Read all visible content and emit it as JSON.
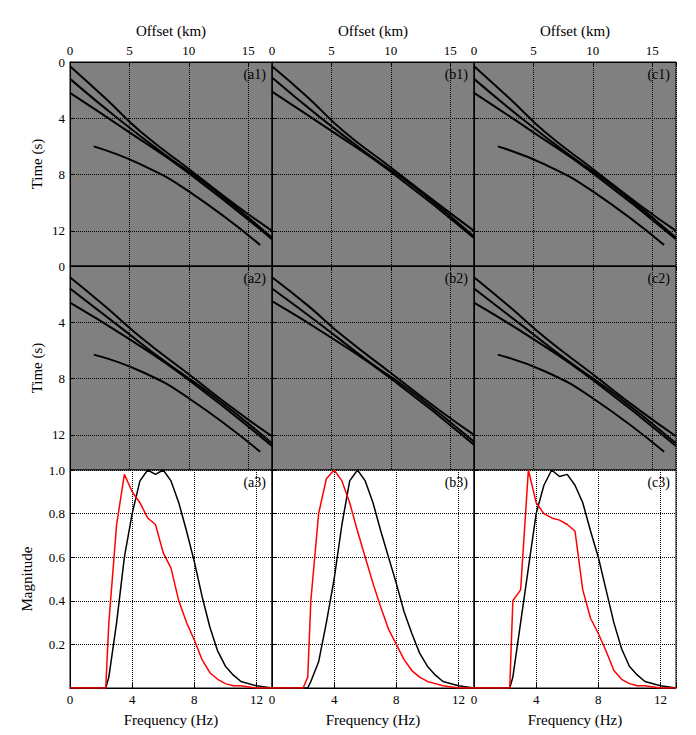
{
  "chart_data": [
    {
      "type": "line",
      "title": "(a1)",
      "xlabel": "Offset (km)",
      "ylabel": "Time (s)",
      "xlim": [
        0,
        17
      ],
      "xticks": [
        0,
        5,
        10,
        15
      ],
      "ylim": [
        0,
        14.5
      ],
      "yticks": [
        0,
        4,
        8,
        12
      ],
      "grid": true,
      "tick_labels": true,
      "series": [
        {
          "color": "#000000",
          "values": [
            [
              0,
              0.3
            ],
            [
              3,
              2.6
            ],
            [
              6,
              5
            ],
            [
              10,
              7.6
            ],
            [
              14,
              10.2
            ],
            [
              17,
              12
            ]
          ]
        },
        {
          "color": "#000000",
          "values": [
            [
              0,
              1.2
            ],
            [
              4,
              4
            ],
            [
              8,
              6.6
            ],
            [
              12,
              9
            ],
            [
              17,
              12.5
            ]
          ]
        },
        {
          "color": "#000000",
          "values": [
            [
              0,
              2.2
            ],
            [
              5,
              5
            ],
            [
              10,
              7.9
            ],
            [
              17,
              12.6
            ]
          ]
        },
        {
          "color": "#000000",
          "values": [
            [
              2,
              6
            ],
            [
              6,
              7.3
            ],
            [
              10,
              9.2
            ],
            [
              16,
              13
            ]
          ]
        }
      ]
    },
    {
      "type": "line",
      "title": "(b1)",
      "xlabel": "Offset (km)",
      "xlim": [
        0,
        17
      ],
      "xticks": [
        0,
        5,
        10,
        15
      ],
      "ylim": [
        0,
        14.5
      ],
      "yticks": [
        0,
        4,
        8,
        12
      ],
      "grid": true,
      "tick_labels": "x",
      "series": [
        {
          "color": "#000000",
          "values": [
            [
              0,
              0.3
            ],
            [
              3,
              2.5
            ],
            [
              6,
              4.9
            ],
            [
              10,
              7.5
            ],
            [
              14,
              10.1
            ],
            [
              17,
              12
            ]
          ]
        },
        {
          "color": "#000000",
          "values": [
            [
              0,
              1.1
            ],
            [
              4,
              3.9
            ],
            [
              8,
              6.5
            ],
            [
              12,
              8.9
            ],
            [
              17,
              12.4
            ]
          ]
        },
        {
          "color": "#000000",
          "values": [
            [
              0,
              2.1
            ],
            [
              5,
              4.9
            ],
            [
              10,
              7.8
            ],
            [
              17,
              12.5
            ]
          ]
        }
      ]
    },
    {
      "type": "line",
      "title": "(c1)",
      "xlabel": "Offset (km)",
      "xlim": [
        0,
        17
      ],
      "xticks": [
        0,
        5,
        10,
        15
      ],
      "ylim": [
        0,
        14.5
      ],
      "yticks": [
        0,
        4,
        8,
        12
      ],
      "grid": true,
      "tick_labels": "x",
      "series": [
        {
          "color": "#000000",
          "values": [
            [
              0,
              0.3
            ],
            [
              3,
              2.6
            ],
            [
              6,
              5
            ],
            [
              10,
              7.6
            ],
            [
              14,
              10.2
            ],
            [
              17,
              12
            ]
          ]
        },
        {
          "color": "#000000",
          "values": [
            [
              0,
              1.2
            ],
            [
              4,
              4
            ],
            [
              8,
              6.6
            ],
            [
              12,
              9
            ],
            [
              17,
              12.5
            ]
          ]
        },
        {
          "color": "#000000",
          "values": [
            [
              0,
              2.2
            ],
            [
              5,
              5
            ],
            [
              10,
              7.9
            ],
            [
              17,
              12.6
            ]
          ]
        },
        {
          "color": "#000000",
          "values": [
            [
              2,
              6
            ],
            [
              6,
              7.3
            ],
            [
              10,
              9.2
            ],
            [
              16,
              13
            ]
          ]
        }
      ]
    },
    {
      "type": "line",
      "title": "(a2)",
      "ylabel": "Time (s)",
      "xlim": [
        0,
        17
      ],
      "xticks": [
        0,
        5,
        10,
        15
      ],
      "ylim": [
        0,
        14.5
      ],
      "yticks": [
        0,
        4,
        8,
        12
      ],
      "grid": true,
      "tick_labels": "y",
      "series": [
        {
          "color": "#000000",
          "values": [
            [
              0,
              0.8
            ],
            [
              3,
              2.9
            ],
            [
              6,
              5.1
            ],
            [
              10,
              7.7
            ],
            [
              14,
              10.3
            ],
            [
              17,
              12.1
            ]
          ]
        },
        {
          "color": "#000000",
          "values": [
            [
              0,
              1.6
            ],
            [
              4,
              4.2
            ],
            [
              8,
              6.8
            ],
            [
              12,
              9.2
            ],
            [
              17,
              12.6
            ]
          ]
        },
        {
          "color": "#000000",
          "values": [
            [
              0,
              2.6
            ],
            [
              5,
              5.2
            ],
            [
              10,
              8.1
            ],
            [
              17,
              12.8
            ]
          ]
        },
        {
          "color": "#000000",
          "values": [
            [
              2,
              6.3
            ],
            [
              6,
              7.5
            ],
            [
              10,
              9.4
            ],
            [
              16,
              13.2
            ]
          ]
        }
      ]
    },
    {
      "type": "line",
      "title": "(b2)",
      "xlim": [
        0,
        17
      ],
      "xticks": [
        0,
        5,
        10,
        15
      ],
      "ylim": [
        0,
        14.5
      ],
      "yticks": [
        0,
        4,
        8,
        12
      ],
      "grid": true,
      "tick_labels": false,
      "series": [
        {
          "color": "#000000",
          "values": [
            [
              0,
              0.8
            ],
            [
              3,
              2.8
            ],
            [
              6,
              5
            ],
            [
              10,
              7.6
            ],
            [
              14,
              10.2
            ],
            [
              17,
              12
            ]
          ]
        },
        {
          "color": "#000000",
          "values": [
            [
              0,
              1.6
            ],
            [
              4,
              4.1
            ],
            [
              8,
              6.7
            ],
            [
              12,
              9.1
            ],
            [
              17,
              12.5
            ]
          ]
        },
        {
          "color": "#000000",
          "values": [
            [
              0,
              2.5
            ],
            [
              5,
              5.1
            ],
            [
              10,
              8
            ],
            [
              17,
              12.7
            ]
          ]
        }
      ]
    },
    {
      "type": "line",
      "title": "(c2)",
      "xlim": [
        0,
        17
      ],
      "xticks": [
        0,
        5,
        10,
        15
      ],
      "ylim": [
        0,
        14.5
      ],
      "yticks": [
        0,
        4,
        8,
        12
      ],
      "grid": true,
      "tick_labels": false,
      "series": [
        {
          "color": "#000000",
          "values": [
            [
              0,
              0.8
            ],
            [
              3,
              2.9
            ],
            [
              6,
              5.1
            ],
            [
              10,
              7.7
            ],
            [
              14,
              10.3
            ],
            [
              17,
              12.1
            ]
          ]
        },
        {
          "color": "#000000",
          "values": [
            [
              0,
              1.6
            ],
            [
              4,
              4.2
            ],
            [
              8,
              6.8
            ],
            [
              12,
              9.2
            ],
            [
              17,
              12.6
            ]
          ]
        },
        {
          "color": "#000000",
          "values": [
            [
              0,
              2.6
            ],
            [
              5,
              5.2
            ],
            [
              10,
              8.1
            ],
            [
              17,
              12.8
            ]
          ]
        },
        {
          "color": "#000000",
          "values": [
            [
              2,
              6.3
            ],
            [
              6,
              7.5
            ],
            [
              10,
              9.4
            ],
            [
              16,
              13.2
            ]
          ]
        }
      ]
    },
    {
      "type": "line",
      "title": "(a3)",
      "xlabel": "Frequency (Hz)",
      "ylabel": "Magnitude",
      "xlim": [
        0,
        13
      ],
      "xticks": [
        0,
        4,
        8,
        12
      ],
      "ylim": [
        0,
        1
      ],
      "yticks": [
        0.2,
        0.4,
        0.6,
        0.8,
        {
          "value": 1,
          "label": "1.0"
        }
      ],
      "grid": true,
      "tick_labels": true,
      "x": [
        0,
        1,
        2,
        2.3,
        2.5,
        3,
        3.5,
        4,
        4.5,
        5,
        5.5,
        6,
        6.5,
        7,
        7.5,
        8,
        8.5,
        9,
        9.5,
        10,
        10.5,
        11,
        12,
        13
      ],
      "series": [
        {
          "color": "#000000",
          "values": [
            0,
            0,
            0,
            0,
            0.05,
            0.3,
            0.6,
            0.8,
            0.95,
            1.0,
            0.98,
            1.0,
            0.95,
            0.85,
            0.72,
            0.58,
            0.42,
            0.28,
            0.17,
            0.1,
            0.06,
            0.03,
            0.01,
            0
          ]
        },
        {
          "color": "#ff0000",
          "values": [
            0,
            0,
            0,
            0,
            0.3,
            0.75,
            0.98,
            0.9,
            0.85,
            0.78,
            0.75,
            0.62,
            0.55,
            0.4,
            0.3,
            0.22,
            0.13,
            0.07,
            0.04,
            0.02,
            0.01,
            0.01,
            0,
            0
          ]
        }
      ]
    },
    {
      "type": "line",
      "title": "(b3)",
      "xlabel": "Frequency (Hz)",
      "xlim": [
        0,
        13
      ],
      "xticks": [
        0,
        4,
        8,
        12
      ],
      "ylim": [
        0,
        1
      ],
      "yticks": [
        0.2,
        0.4,
        0.6,
        0.8,
        {
          "value": 1,
          "label": "1.0"
        }
      ],
      "grid": true,
      "tick_labels": "x",
      "x": [
        0,
        1,
        2,
        2.3,
        2.5,
        3,
        3.5,
        4,
        4.5,
        5,
        5.5,
        6,
        6.5,
        7,
        7.5,
        8,
        8.5,
        9,
        9.5,
        10,
        10.5,
        11,
        12,
        13
      ],
      "series": [
        {
          "color": "#000000",
          "values": [
            0,
            0,
            0,
            0,
            0.03,
            0.12,
            0.3,
            0.5,
            0.75,
            0.95,
            1.0,
            0.95,
            0.85,
            0.72,
            0.6,
            0.48,
            0.35,
            0.25,
            0.16,
            0.1,
            0.06,
            0.03,
            0.01,
            0
          ]
        },
        {
          "color": "#ff0000",
          "values": [
            0,
            0,
            0,
            0.05,
            0.4,
            0.8,
            0.96,
            1.0,
            0.95,
            0.85,
            0.72,
            0.6,
            0.48,
            0.37,
            0.27,
            0.2,
            0.13,
            0.08,
            0.05,
            0.03,
            0.02,
            0.01,
            0,
            0
          ]
        }
      ]
    },
    {
      "type": "line",
      "title": "(c3)",
      "xlabel": "Frequency (Hz)",
      "xlim": [
        0,
        13
      ],
      "xticks": [
        0,
        4,
        8,
        12
      ],
      "ylim": [
        0,
        1
      ],
      "yticks": [
        0.2,
        0.4,
        0.6,
        0.8,
        {
          "value": 1,
          "label": "1.0"
        }
      ],
      "grid": true,
      "tick_labels": "x",
      "x": [
        0,
        1,
        2,
        2.3,
        2.5,
        3,
        3.5,
        4,
        4.5,
        5,
        5.5,
        6,
        6.5,
        7,
        7.5,
        8,
        8.5,
        9,
        9.5,
        10,
        10.5,
        11,
        12,
        13
      ],
      "series": [
        {
          "color": "#000000",
          "values": [
            0,
            0,
            0,
            0,
            0.05,
            0.3,
            0.55,
            0.8,
            0.93,
            1.0,
            0.97,
            0.98,
            0.93,
            0.85,
            0.72,
            0.6,
            0.45,
            0.3,
            0.18,
            0.1,
            0.06,
            0.03,
            0.01,
            0
          ]
        },
        {
          "color": "#ff0000",
          "values": [
            0,
            0,
            0,
            0,
            0.4,
            0.45,
            1.0,
            0.85,
            0.8,
            0.78,
            0.77,
            0.75,
            0.72,
            0.45,
            0.32,
            0.25,
            0.17,
            0.08,
            0.04,
            0.02,
            0.01,
            0.01,
            0,
            0
          ]
        }
      ]
    }
  ]
}
